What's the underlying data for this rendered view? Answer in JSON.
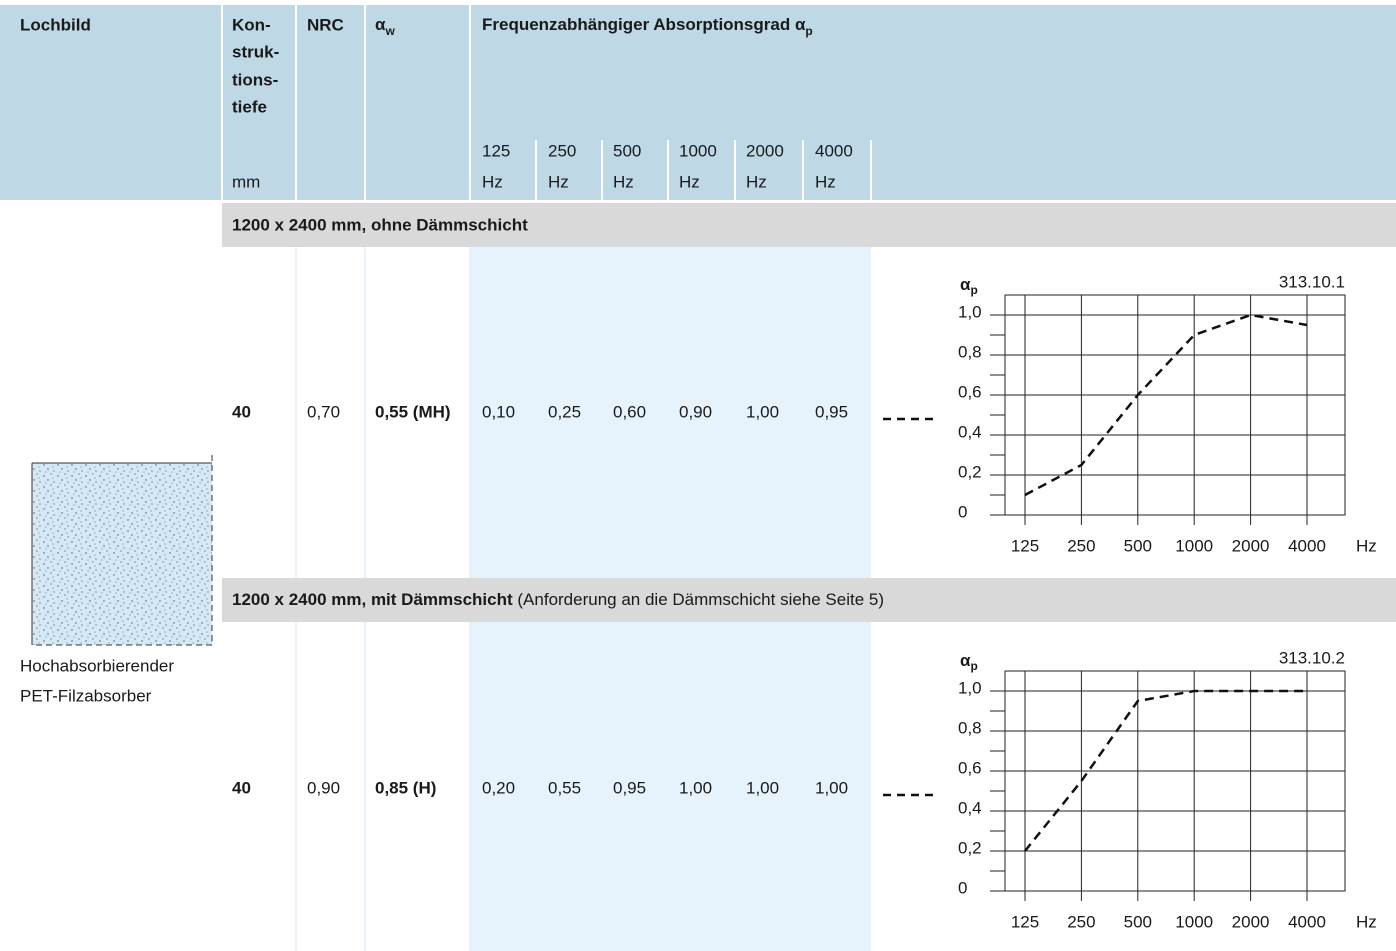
{
  "header": {
    "lochbild": "Lochbild",
    "depth": [
      "Kon-",
      "struk-",
      "tions-",
      "tiefe"
    ],
    "depth_unit": "mm",
    "nrc": "NRC",
    "alpha_w": {
      "symbol": "α",
      "sub": "w"
    },
    "frequency": {
      "title": "Frequenzabhängiger Absorptionsgrad α",
      "sub": "p",
      "bands": [
        {
          "freq": "125",
          "unit": "Hz"
        },
        {
          "freq": "250",
          "unit": "Hz"
        },
        {
          "freq": "500",
          "unit": "Hz"
        },
        {
          "freq": "1000",
          "unit": "Hz"
        },
        {
          "freq": "2000",
          "unit": "Hz"
        },
        {
          "freq": "4000",
          "unit": "Hz"
        }
      ]
    }
  },
  "lochbild": {
    "caption": [
      "Hochabsorbierender",
      "PET-Filzabsorber"
    ]
  },
  "sections": [
    {
      "title": "1200 x 2400 mm, ohne Dämmschicht",
      "row": [
        "40",
        "0,70",
        "0,55 (MH)",
        "0,10",
        "0,25",
        "0,60",
        "0,90",
        "1,00",
        "0,95"
      ],
      "chart": {
        "y_label": "α",
        "y_label_sub": "p",
        "code": "313.10.1",
        "categories": [
          "125",
          "250",
          "500",
          "1000",
          "2000",
          "4000"
        ],
        "x_unit": "Hz",
        "values": [
          0.1,
          0.25,
          0.6,
          0.9,
          1.0,
          0.95
        ],
        "ylim": [
          0,
          1.1
        ],
        "yticks": [
          0,
          {
            "value": 0.2,
            "label": "0,2"
          },
          {
            "value": 0.4,
            "label": "0,4"
          },
          {
            "value": 0.6,
            "label": "0,6"
          },
          {
            "value": 0.8,
            "label": "0,8"
          },
          {
            "value": 1,
            "label": "1,0"
          }
        ],
        "minor_yticks": [
          0.1,
          0.3,
          0.5,
          0.7,
          0.9
        ]
      }
    },
    {
      "title": "1200 x 2400 mm, mit Dämmschicht",
      "note": "(Anforderung an die Dämmschicht siehe Seite 5)",
      "row": [
        "40",
        "0,90",
        "0,85 (H)",
        "0,20",
        "0,55",
        "0,95",
        "1,00",
        "1,00",
        "1,00"
      ],
      "chart": {
        "y_label": "α",
        "y_label_sub": "p",
        "code": "313.10.2",
        "categories": [
          "125",
          "250",
          "500",
          "1000",
          "2000",
          "4000"
        ],
        "x_unit": "Hz",
        "values": [
          0.2,
          0.55,
          0.95,
          1.0,
          1.0,
          1.0
        ],
        "ylim": [
          0,
          1.1
        ],
        "yticks": [
          0,
          {
            "value": 0.2,
            "label": "0,2"
          },
          {
            "value": 0.4,
            "label": "0,4"
          },
          {
            "value": 0.6,
            "label": "0,6"
          },
          {
            "value": 0.8,
            "label": "0,8"
          },
          {
            "value": 1,
            "label": "1,0"
          }
        ],
        "minor_yticks": [
          0.1,
          0.3,
          0.5,
          0.7,
          0.9
        ]
      }
    }
  ]
}
